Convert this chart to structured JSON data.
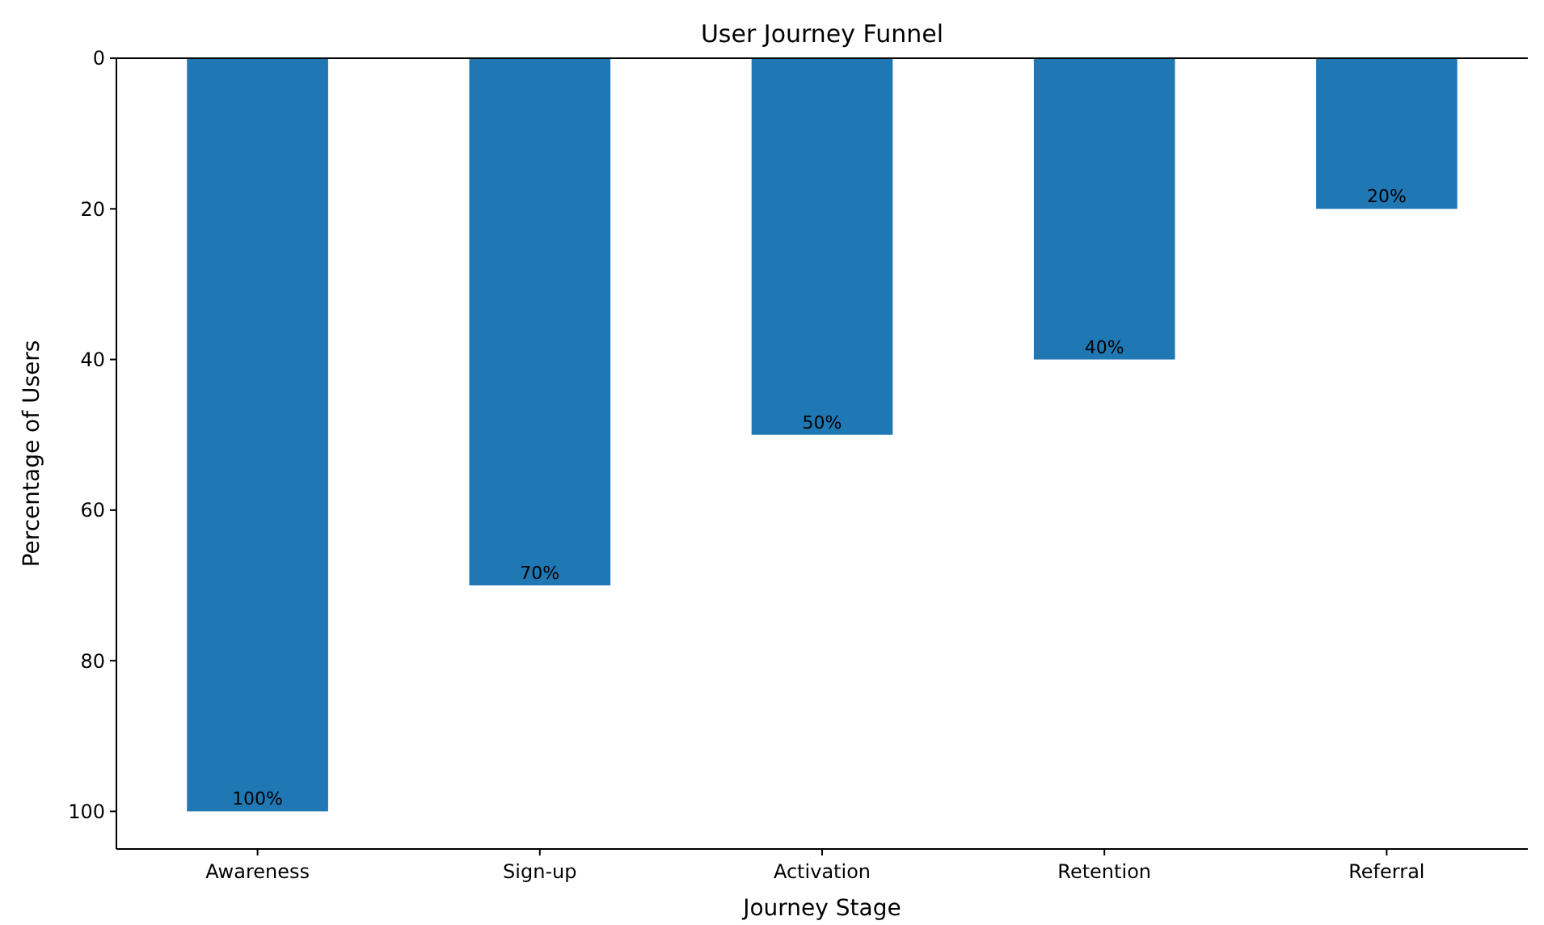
{
  "chart_data": {
    "type": "bar",
    "title": "User Journey Funnel",
    "xlabel": "Journey Stage",
    "ylabel": "Percentage of Users",
    "categories": [
      "Awareness",
      "Sign-up",
      "Activation",
      "Retention",
      "Referral"
    ],
    "values": [
      100,
      70,
      50,
      40,
      20
    ],
    "value_labels": [
      "100%",
      "70%",
      "50%",
      "40%",
      "20%"
    ],
    "color": "#1f77b4",
    "ylim": [
      105,
      0
    ],
    "yticks": [
      0,
      20,
      40,
      60,
      80,
      100
    ],
    "grid": false
  }
}
